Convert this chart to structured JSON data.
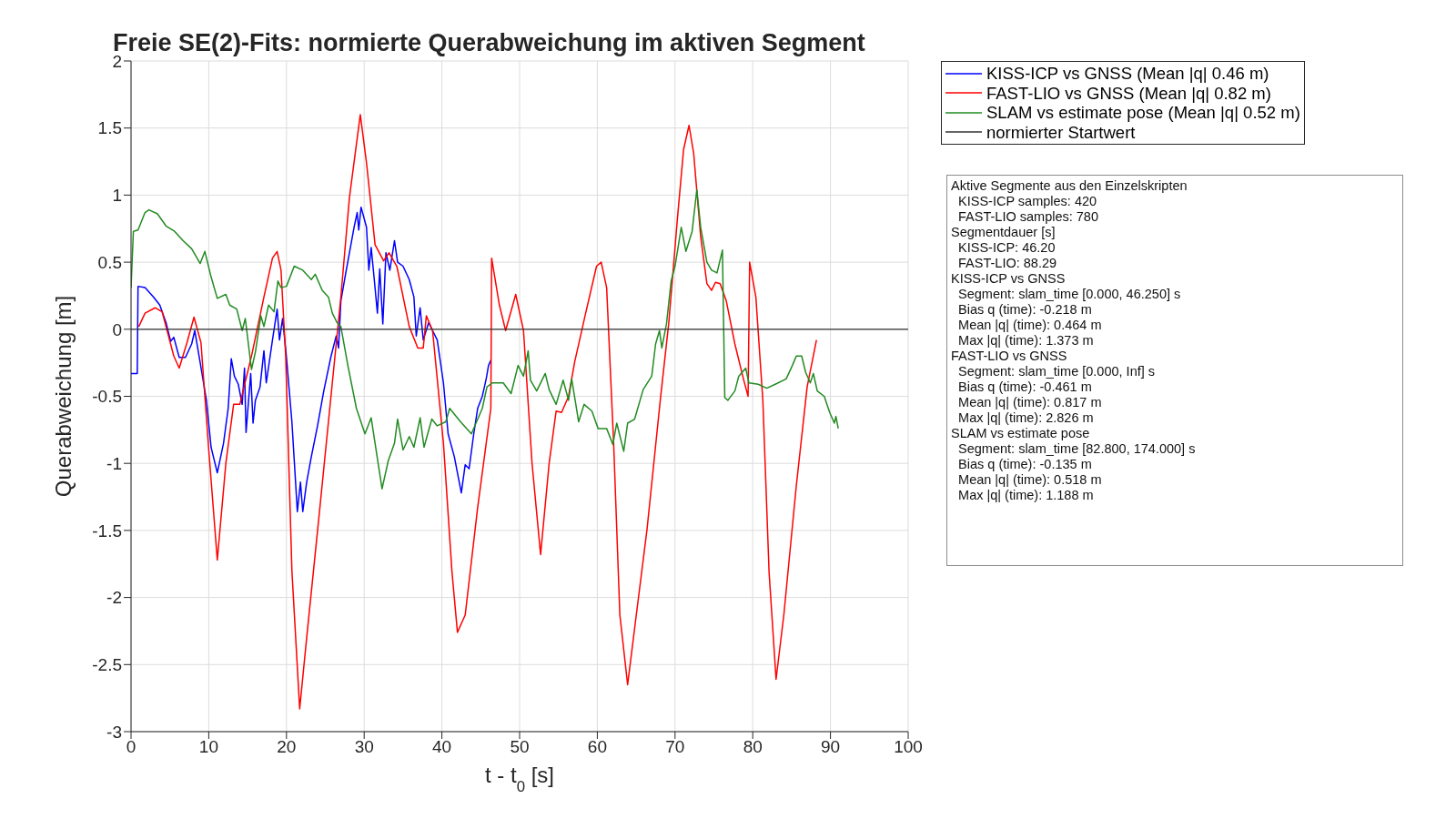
{
  "chart_data": {
    "type": "line",
    "title": "Freie SE(2)-Fits: normierte Querabweichung im aktiven Segment",
    "xlabel": "t  -  t$_{0}$  [s]",
    "ylabel": "Querabweichung [m]",
    "xlim": [
      0,
      100
    ],
    "xticks": [
      0,
      10,
      20,
      30,
      40,
      50,
      60,
      70,
      80,
      90,
      100
    ],
    "ylim": [
      -3,
      2
    ],
    "yticks": [
      -3,
      -2.5,
      -2,
      -1.5,
      -1,
      -0.5,
      0,
      0.5,
      1,
      1.5,
      2
    ],
    "grid": true,
    "legend": "top right",
    "marker": "none",
    "line_style": "solid",
    "series": [
      {
        "name": "KISS-ICP vs GNSS (Mean |q| 0.46 m)",
        "color": "#0000ff",
        "x": [
          0,
          0.8,
          0.9,
          1.8,
          2.9,
          3.7,
          4.5,
          5.1,
          5.5,
          6.2,
          7.0,
          7.8,
          8.2,
          8.9,
          9.7,
          10.3,
          11.1,
          11.9,
          12.5,
          12.9,
          13.3,
          13.8,
          14.3,
          14.6,
          14.8,
          15.4,
          15.7,
          16.0,
          16.6,
          17.1,
          17.4,
          18.2,
          18.8,
          19.1,
          19.5,
          20.0,
          20.7,
          21.4,
          21.8,
          22.1,
          22.6,
          23.2,
          24.0,
          24.8,
          25.7,
          26.4,
          26.7,
          27.0,
          27.6,
          28.1,
          28.7,
          29.1,
          29.3,
          29.6,
          30.3,
          30.6,
          30.9,
          31.3,
          31.7,
          32.0,
          32.4,
          32.8,
          33.3,
          33.9,
          34.3,
          35.0,
          35.8,
          36.4,
          36.7,
          37.2,
          37.6,
          38.3,
          38.8,
          39.4,
          40.2,
          40.8,
          41.6,
          41.9,
          42.5,
          43.0,
          43.5,
          44.1,
          44.6,
          45.2,
          45.7,
          46.0,
          46.3
        ],
        "values": [
          -0.33,
          -0.33,
          0.32,
          0.31,
          0.24,
          0.18,
          0.05,
          -0.09,
          -0.06,
          -0.21,
          -0.21,
          -0.11,
          -0.01,
          -0.25,
          -0.53,
          -0.88,
          -1.07,
          -0.85,
          -0.59,
          -0.22,
          -0.35,
          -0.41,
          -0.56,
          -0.29,
          -0.77,
          -0.33,
          -0.7,
          -0.53,
          -0.43,
          -0.16,
          -0.4,
          -0.08,
          0.15,
          -0.08,
          0.08,
          -0.21,
          -0.69,
          -1.36,
          -1.14,
          -1.36,
          -1.14,
          -0.95,
          -0.72,
          -0.46,
          -0.21,
          -0.05,
          -0.14,
          0.21,
          0.41,
          0.57,
          0.76,
          0.87,
          0.74,
          0.91,
          0.76,
          0.44,
          0.61,
          0.37,
          0.12,
          0.45,
          0.04,
          0.57,
          0.44,
          0.66,
          0.5,
          0.47,
          0.37,
          0.24,
          -0.05,
          0.16,
          -0.08,
          0.05,
          -0.01,
          -0.08,
          -0.4,
          -0.78,
          -0.95,
          -1.04,
          -1.22,
          -1.01,
          -1.04,
          -0.78,
          -0.59,
          -0.5,
          -0.37,
          -0.27,
          -0.23
        ]
      },
      {
        "name": "FAST-LIO vs GNSS (Mean |q| 0.82 m)",
        "color": "#ff0000",
        "x": [
          1.0,
          1.8,
          3.1,
          4.0,
          5.5,
          6.2,
          7.2,
          8.1,
          9.0,
          10.0,
          11.1,
          12.2,
          13.2,
          14.0,
          15.5,
          17.1,
          18.2,
          18.8,
          19.3,
          19.9,
          20.7,
          21.7,
          22.6,
          24.3,
          25.9,
          27.0,
          28.1,
          29.5,
          30.3,
          31.4,
          32.5,
          33.2,
          34.2,
          35.8,
          36.9,
          37.6,
          38.0,
          38.8,
          40.2,
          41.3,
          42.0,
          43.0,
          44.6,
          46.3,
          46.4,
          47.4,
          48.2,
          49.5,
          50.5,
          51.6,
          52.7,
          53.8,
          54.7,
          55.4,
          56.3,
          57.1,
          58.5,
          59.9,
          60.5,
          61.2,
          62.1,
          62.9,
          63.9,
          64.8,
          66.4,
          68.1,
          69.2,
          70.3,
          71.1,
          71.8,
          72.4,
          73.3,
          74.1,
          74.7,
          75.2,
          75.8,
          76.6,
          77.7,
          78.8,
          79.4,
          79.6,
          80.4,
          81.3,
          82.1,
          83.0,
          84.0,
          85.6,
          87.0,
          88.2
        ],
        "values": [
          0.02,
          0.12,
          0.16,
          0.13,
          -0.2,
          -0.29,
          -0.1,
          0.09,
          -0.1,
          -0.9,
          -1.72,
          -1.0,
          -0.56,
          -0.56,
          -0.2,
          0.24,
          0.53,
          0.58,
          0.44,
          -0.2,
          -1.8,
          -2.83,
          -2.3,
          -1.33,
          -0.4,
          0.24,
          0.98,
          1.6,
          1.24,
          0.63,
          0.51,
          0.57,
          0.47,
          0.02,
          -0.14,
          -0.14,
          0.1,
          -0.01,
          -0.85,
          -1.81,
          -2.26,
          -2.13,
          -1.33,
          -0.59,
          0.53,
          0.18,
          -0.01,
          0.26,
          -0.01,
          -1.0,
          -1.68,
          -1.0,
          -0.61,
          -0.62,
          -0.5,
          -0.24,
          0.12,
          0.47,
          0.5,
          0.31,
          -0.85,
          -2.13,
          -2.65,
          -2.23,
          -1.49,
          -0.53,
          0.05,
          0.82,
          1.34,
          1.52,
          1.31,
          0.69,
          0.34,
          0.29,
          0.35,
          0.34,
          0.21,
          -0.11,
          -0.37,
          -0.5,
          0.5,
          0.24,
          -0.53,
          -1.81,
          -2.61,
          -2.13,
          -1.17,
          -0.43,
          -0.08
        ]
      },
      {
        "name": "SLAM vs estimate pose (Mean |q| 0.52 m)",
        "color": "#228b22",
        "x": [
          0,
          0.3,
          0.9,
          1.8,
          2.3,
          3.4,
          4.5,
          5.6,
          6.7,
          7.8,
          8.9,
          9.5,
          10.3,
          11.1,
          12.2,
          12.7,
          13.6,
          14.3,
          14.7,
          15.5,
          16.0,
          16.7,
          17.1,
          17.7,
          18.4,
          18.9,
          19.3,
          20.0,
          21.0,
          22.1,
          23.2,
          23.7,
          24.6,
          25.4,
          25.9,
          26.5,
          27.0,
          27.9,
          29.0,
          30.1,
          30.9,
          31.4,
          32.3,
          33.1,
          33.9,
          34.3,
          35.0,
          35.8,
          36.4,
          37.2,
          37.7,
          38.7,
          39.4,
          40.5,
          41.0,
          42.4,
          43.8,
          45.2,
          45.8,
          46.5,
          47.9,
          48.9,
          49.8,
          50.5,
          51.1,
          51.4,
          52.2,
          53.3,
          53.8,
          54.7,
          55.6,
          56.3,
          56.7,
          57.6,
          58.3,
          59.3,
          60.1,
          61.2,
          62.0,
          62.5,
          63.4,
          63.9,
          64.8,
          65.9,
          67.0,
          67.5,
          68.0,
          68.3,
          68.9,
          69.5,
          70.0,
          70.8,
          71.4,
          72.2,
          72.8,
          73.3,
          74.1,
          74.7,
          75.4,
          76.1,
          76.4,
          76.8,
          77.7,
          78.2,
          79.1,
          79.5,
          80.7,
          81.8,
          82.9,
          84.3,
          85.1,
          85.6,
          86.3,
          86.8,
          87.4,
          87.8,
          88.3,
          89.2,
          89.9,
          90.5,
          90.7,
          91.0
        ],
        "values": [
          0.31,
          0.73,
          0.74,
          0.87,
          0.89,
          0.86,
          0.77,
          0.73,
          0.66,
          0.6,
          0.49,
          0.58,
          0.39,
          0.23,
          0.26,
          0.18,
          0.15,
          -0.01,
          0.08,
          -0.3,
          -0.17,
          0.1,
          0.02,
          0.18,
          0.13,
          0.36,
          0.31,
          0.32,
          0.47,
          0.44,
          0.37,
          0.41,
          0.29,
          0.24,
          0.12,
          0.05,
          0.02,
          -0.27,
          -0.59,
          -0.78,
          -0.66,
          -0.85,
          -1.19,
          -0.98,
          -0.85,
          -0.67,
          -0.9,
          -0.8,
          -0.88,
          -0.66,
          -0.88,
          -0.67,
          -0.72,
          -0.69,
          -0.59,
          -0.69,
          -0.78,
          -0.59,
          -0.43,
          -0.4,
          -0.4,
          -0.48,
          -0.27,
          -0.35,
          -0.16,
          -0.38,
          -0.46,
          -0.33,
          -0.45,
          -0.56,
          -0.38,
          -0.53,
          -0.37,
          -0.69,
          -0.56,
          -0.61,
          -0.74,
          -0.74,
          -0.86,
          -0.7,
          -0.91,
          -0.7,
          -0.67,
          -0.45,
          -0.35,
          -0.11,
          -0.01,
          -0.14,
          0.04,
          0.36,
          0.47,
          0.76,
          0.58,
          0.73,
          1.04,
          0.76,
          0.5,
          0.44,
          0.42,
          0.59,
          -0.51,
          -0.53,
          -0.46,
          -0.35,
          -0.29,
          -0.4,
          -0.41,
          -0.44,
          -0.41,
          -0.37,
          -0.27,
          -0.2,
          -0.2,
          -0.32,
          -0.4,
          -0.33,
          -0.46,
          -0.5,
          -0.62,
          -0.7,
          -0.65,
          -0.74
        ]
      },
      {
        "name": "normierter Startwert",
        "color": "#333333",
        "x": [
          0,
          100
        ],
        "values": [
          0,
          0
        ]
      }
    ],
    "annotations": [
      "Aktive Segmente aus den Einzelskripten",
      "  KISS-ICP samples: 420",
      "  FAST-LIO samples: 780",
      "Segmentdauer [s]",
      "  KISS-ICP: 46.20",
      "  FAST-LIO: 88.29",
      "KISS-ICP vs GNSS",
      "  Segment: slam_time [0.000, 46.250] s",
      "  Bias q (time): -0.218 m",
      "  Mean |q| (time): 0.464 m",
      "  Max |q| (time): 1.373 m",
      "FAST-LIO vs GNSS",
      "  Segment: slam_time [0.000, Inf] s",
      "  Bias q (time): -0.461 m",
      "  Mean |q| (time): 0.817 m",
      "  Max |q| (time): 2.826 m",
      "SLAM vs estimate pose",
      "  Segment: slam_time [82.800, 174.000] s",
      "  Bias q (time): -0.135 m",
      "  Mean |q| (time): 0.518 m",
      "  Max |q| (time): 1.188 m"
    ]
  }
}
